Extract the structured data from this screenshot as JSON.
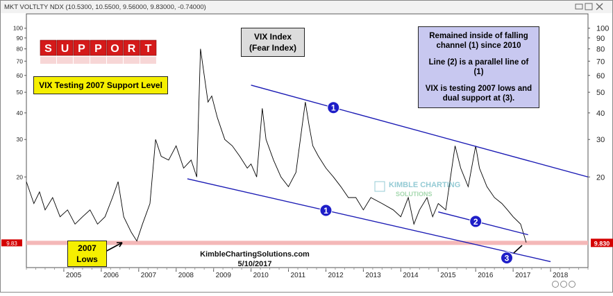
{
  "header": {
    "series_label": "MKT VOLTLTY NDX (10.5300, 10.5500, 9.56000, 9.83000, -0.74000)",
    "window_icons": [
      "minimize-icon",
      "restore-icon",
      "close-icon"
    ]
  },
  "annotations": {
    "vix_line1": "VIX Index",
    "vix_line2": "(Fear Index)",
    "note_line1": "Remained inside of falling channel (1) since 2010",
    "note_line2": "Line (2) is a parallel line of (1)",
    "note_line3": "VIX is testing 2007 lows and dual support at (3).",
    "support_word": "SUPPORT",
    "support_caption": "VIX Testing 2007 Support Level",
    "lows_line1": "2007",
    "lows_line2": "Lows",
    "source": "KimbleChartingSolutions.com",
    "date": "5/10/2017",
    "watermark_line1": "KIMBLE CHARTING",
    "watermark_line2": "SOLUTIONS",
    "markers": [
      "1",
      "1",
      "2",
      "3"
    ]
  },
  "price_tag": {
    "left": "9.83",
    "right": "9.830"
  },
  "colors": {
    "background": "#ffffff",
    "price_line": "#000000",
    "channel_line": "#1a1ab4",
    "support_band": "#f4b8b8",
    "marker_fill": "#1e1ec8",
    "note_box": "#c8c8f0",
    "yellow_box": "#f5ef00",
    "support_cube": "#d41a1a",
    "price_tag": "#d40000"
  },
  "chart_data": {
    "type": "line",
    "title": "MKT VOLTLTY NDX",
    "xlabel": "",
    "ylabel": "",
    "yscale": "log",
    "ylim": [
      7.5,
      110
    ],
    "xlim": [
      2004.0,
      2019.0
    ],
    "y_ticks": [
      100,
      90,
      80,
      70,
      60,
      50,
      40,
      30,
      20
    ],
    "y_ticks_right": [
      100,
      90,
      80,
      70,
      60,
      50,
      40,
      30,
      20
    ],
    "x_tick_labels": [
      "2005",
      "2006",
      "2007",
      "2008",
      "2009",
      "2010",
      "2011",
      "2012",
      "2013",
      "2014",
      "2015",
      "2016",
      "2017",
      "2018"
    ],
    "x_tick_positions": [
      2005,
      2006,
      2007,
      2008,
      2009,
      2010,
      2011,
      2012,
      2013,
      2014,
      2015,
      2016,
      2017,
      2018
    ],
    "series": [
      {
        "name": "",
        "x": [
          2004.0,
          2004.2,
          2004.35,
          2004.5,
          2004.7,
          2004.9,
          2005.1,
          2005.3,
          2005.5,
          2005.7,
          2005.9,
          2006.1,
          2006.3,
          2006.45,
          2006.6,
          2006.8,
          2006.95,
          2007.1,
          2007.3,
          2007.45,
          2007.6,
          2007.8,
          2008.0,
          2008.2,
          2008.4,
          2008.55,
          2008.65,
          2008.75,
          2008.85,
          2008.95,
          2009.1,
          2009.3,
          2009.5,
          2009.7,
          2009.9,
          2010.0,
          2010.15,
          2010.3,
          2010.4,
          2010.6,
          2010.8,
          2011.0,
          2011.2,
          2011.45,
          2011.55,
          2011.65,
          2011.8,
          2012.0,
          2012.2,
          2012.4,
          2012.6,
          2012.8,
          2013.0,
          2013.2,
          2013.5,
          2013.8,
          2014.0,
          2014.2,
          2014.35,
          2014.5,
          2014.7,
          2014.85,
          2015.0,
          2015.2,
          2015.45,
          2015.6,
          2015.8,
          2016.0,
          2016.1,
          2016.3,
          2016.5,
          2016.7,
          2016.85,
          2017.0,
          2017.2,
          2017.35
        ],
        "values": [
          19,
          15,
          17,
          14,
          16,
          13,
          14,
          12,
          13,
          14,
          12,
          13,
          16,
          19,
          13,
          11,
          10,
          12,
          15,
          30,
          25,
          24,
          28,
          22,
          24,
          20,
          80,
          60,
          45,
          48,
          38,
          30,
          28,
          25,
          22,
          23,
          20,
          42,
          30,
          24,
          20,
          18,
          21,
          45,
          35,
          28,
          25,
          22,
          20,
          18,
          16,
          16,
          14,
          16,
          15,
          14,
          13,
          16,
          12,
          14,
          16,
          13,
          15,
          14,
          28,
          22,
          18,
          28,
          22,
          18,
          16,
          15,
          14,
          13,
          12,
          9.83
        ]
      }
    ],
    "support_level": 9.8,
    "trendlines": [
      {
        "label": "1",
        "x": [
          2010.0,
          2019.0
        ],
        "y": [
          54,
          20
        ]
      },
      {
        "label": "1",
        "x": [
          2008.3,
          2018.0
        ],
        "y": [
          19.6,
          8.0
        ]
      },
      {
        "label": "2",
        "x": [
          2015.0,
          2017.4
        ],
        "y": [
          13.7,
          10.7
        ]
      }
    ]
  }
}
